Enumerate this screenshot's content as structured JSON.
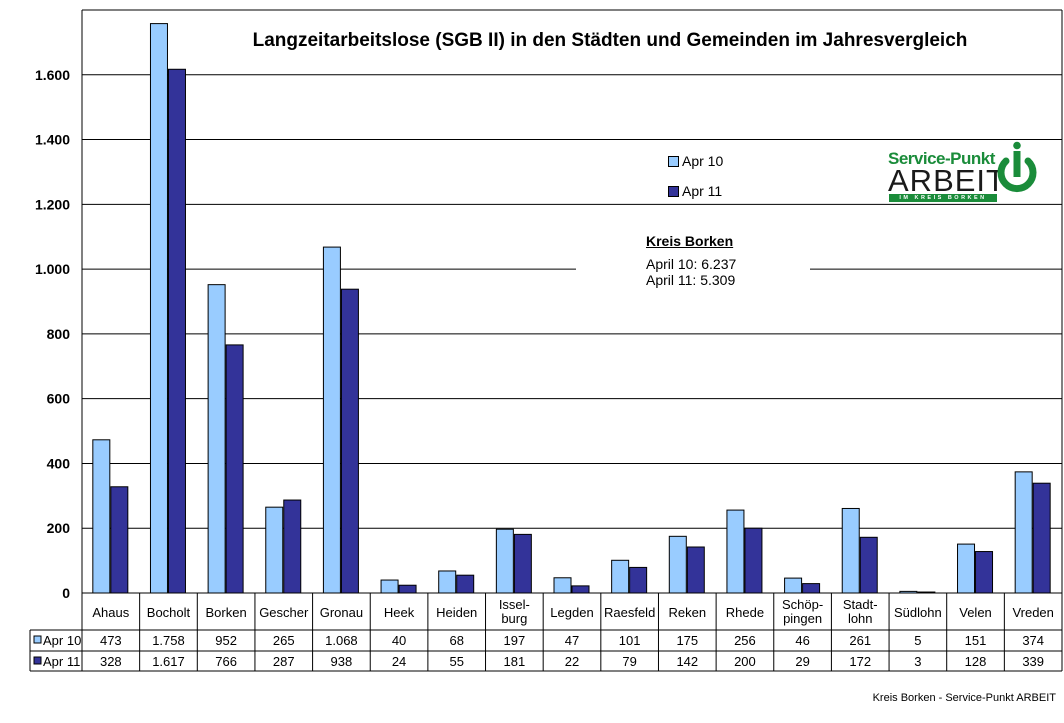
{
  "chart_data": {
    "type": "bar",
    "title": "Langzeitarbeitslose (SGB II) in den Städten und Gemeinden im Jahresvergleich",
    "categories": [
      "Ahaus",
      "Bocholt",
      "Borken",
      "Gescher",
      "Gronau",
      "Heek",
      "Heiden",
      "Issel-|burg",
      "Legden",
      "Raesfeld",
      "Reken",
      "Rhede",
      "Schöp-|pingen",
      "Stadt-|lohn",
      "Südlohn",
      "Velen",
      "Vreden"
    ],
    "series": [
      {
        "name": "Apr 10",
        "color": "#99ccff",
        "values": [
          473,
          1758,
          952,
          265,
          1068,
          40,
          68,
          197,
          47,
          101,
          175,
          256,
          46,
          261,
          5,
          151,
          374
        ],
        "labels": [
          "473",
          "1.758",
          "952",
          "265",
          "1.068",
          "40",
          "68",
          "197",
          "47",
          "101",
          "175",
          "256",
          "46",
          "261",
          "5",
          "151",
          "374"
        ]
      },
      {
        "name": "Apr 11",
        "color": "#333399",
        "values": [
          328,
          1617,
          766,
          287,
          938,
          24,
          55,
          181,
          22,
          79,
          142,
          200,
          29,
          172,
          3,
          128,
          339
        ],
        "labels": [
          "328",
          "1.617",
          "766",
          "287",
          "938",
          "24",
          "55",
          "181",
          "22",
          "79",
          "142",
          "200",
          "29",
          "172",
          "3",
          "128",
          "339"
        ]
      }
    ],
    "ylim": [
      0,
      1800
    ],
    "yticks": [
      0,
      200,
      400,
      600,
      800,
      1000,
      1200,
      1400,
      1600
    ],
    "ytick_labels": [
      "0",
      "200",
      "400",
      "600",
      "800",
      "1.000",
      "1.200",
      "1.400",
      "1.600"
    ],
    "grid": true,
    "legend_position": "top-right",
    "data_table": true
  },
  "legend": {
    "item1": "Apr 10",
    "item2": "Apr 11"
  },
  "kreis_box": {
    "title": "Kreis Borken",
    "line1": "April 10: 6.237",
    "line2": "April 11: 5.309"
  },
  "logo": {
    "line1": "Service-Punkt",
    "line2": "ARBEIT",
    "tagline": "IM KREIS BORKEN"
  },
  "footer": "Kreis Borken - Service-Punkt ARBEIT"
}
